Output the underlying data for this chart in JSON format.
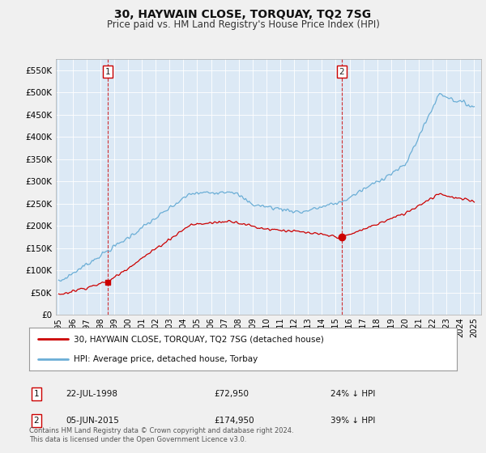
{
  "title": "30, HAYWAIN CLOSE, TORQUAY, TQ2 7SG",
  "subtitle": "Price paid vs. HM Land Registry's House Price Index (HPI)",
  "title_fontsize": 10,
  "subtitle_fontsize": 8.5,
  "hpi_color": "#6baed6",
  "price_color": "#cc0000",
  "marker1_date": 1998.55,
  "marker1_price": 72950,
  "marker2_date": 2015.43,
  "marker2_price": 174950,
  "annotation1_date": "22-JUL-1998",
  "annotation1_price": "£72,950",
  "annotation1_hpi": "24% ↓ HPI",
  "annotation2_date": "05-JUN-2015",
  "annotation2_price": "£174,950",
  "annotation2_hpi": "39% ↓ HPI",
  "legend_line1": "30, HAYWAIN CLOSE, TORQUAY, TQ2 7SG (detached house)",
  "legend_line2": "HPI: Average price, detached house, Torbay",
  "footnote": "Contains HM Land Registry data © Crown copyright and database right 2024.\nThis data is licensed under the Open Government Licence v3.0.",
  "bg_color": "#f0f0f0",
  "plot_bg_color": "#dce9f5",
  "grid_color": "#ffffff",
  "ylim": [
    0,
    575000
  ],
  "yticks": [
    0,
    50000,
    100000,
    150000,
    200000,
    250000,
    300000,
    350000,
    400000,
    450000,
    500000,
    550000
  ],
  "ytick_labels": [
    "£0",
    "£50K",
    "£100K",
    "£150K",
    "£200K",
    "£250K",
    "£300K",
    "£350K",
    "£400K",
    "£450K",
    "£500K",
    "£550K"
  ],
  "xmin": 1994.8,
  "xmax": 2025.5
}
